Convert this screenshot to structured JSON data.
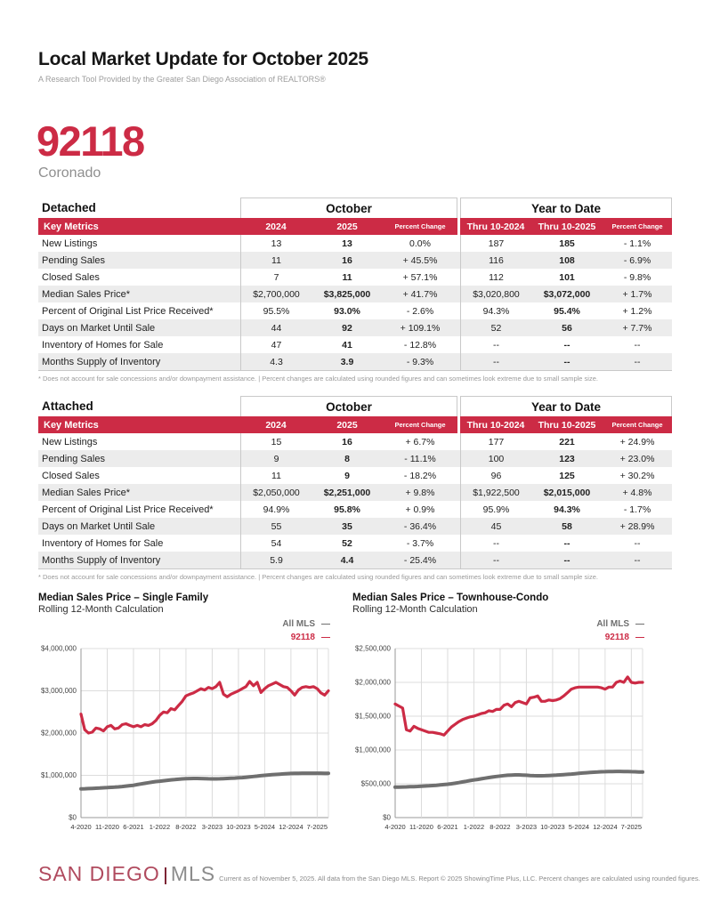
{
  "header": {
    "title": "Local Market Update for October 2025",
    "subtitle": "A Research Tool Provided by the Greater San Diego Association of REALTORS®"
  },
  "location": {
    "zip": "92118",
    "name": "Coronado"
  },
  "glyphs": {
    "legend_dash": "—"
  },
  "colors": {
    "accent_red": "#CC2B45",
    "chart_gray": "#6F6F6F",
    "logo_red": "#B04A5E",
    "logo_bar_red": "#7D2435",
    "logo_gray": "#8C8C8C"
  },
  "tables": [
    {
      "section": "Detached",
      "group_headers": {
        "october": "October",
        "ytd": "Year to Date"
      },
      "columns": [
        "Key Metrics",
        "2024",
        "2025",
        "Percent Change",
        "Thru 10-2024",
        "Thru 10-2025",
        "Percent Change"
      ],
      "rows": [
        [
          "New Listings",
          "13",
          "13",
          "0.0%",
          "187",
          "185",
          "- 1.1%"
        ],
        [
          "Pending Sales",
          "11",
          "16",
          "+ 45.5%",
          "116",
          "108",
          "- 6.9%"
        ],
        [
          "Closed Sales",
          "7",
          "11",
          "+ 57.1%",
          "112",
          "101",
          "- 9.8%"
        ],
        [
          "Median Sales Price*",
          "$2,700,000",
          "$3,825,000",
          "+ 41.7%",
          "$3,020,800",
          "$3,072,000",
          "+ 1.7%"
        ],
        [
          "Percent of Original List Price Received*",
          "95.5%",
          "93.0%",
          "- 2.6%",
          "94.3%",
          "95.4%",
          "+ 1.2%"
        ],
        [
          "Days on Market Until Sale",
          "44",
          "92",
          "+ 109.1%",
          "52",
          "56",
          "+ 7.7%"
        ],
        [
          "Inventory of Homes for Sale",
          "47",
          "41",
          "- 12.8%",
          "--",
          "--",
          "--"
        ],
        [
          "Months Supply of Inventory",
          "4.3",
          "3.9",
          "- 9.3%",
          "--",
          "--",
          "--"
        ]
      ],
      "footnote": "* Does not account for sale concessions and/or downpayment assistance.  |  Percent changes are calculated using rounded figures and can sometimes look extreme due to small sample size."
    },
    {
      "section": "Attached",
      "group_headers": {
        "october": "October",
        "ytd": "Year to Date"
      },
      "columns": [
        "Key Metrics",
        "2024",
        "2025",
        "Percent Change",
        "Thru 10-2024",
        "Thru 10-2025",
        "Percent Change"
      ],
      "rows": [
        [
          "New Listings",
          "15",
          "16",
          "+ 6.7%",
          "177",
          "221",
          "+ 24.9%"
        ],
        [
          "Pending Sales",
          "9",
          "8",
          "- 11.1%",
          "100",
          "123",
          "+ 23.0%"
        ],
        [
          "Closed Sales",
          "11",
          "9",
          "- 18.2%",
          "96",
          "125",
          "+ 30.2%"
        ],
        [
          "Median Sales Price*",
          "$2,050,000",
          "$2,251,000",
          "+ 9.8%",
          "$1,922,500",
          "$2,015,000",
          "+ 4.8%"
        ],
        [
          "Percent of Original List Price Received*",
          "94.9%",
          "95.8%",
          "+ 0.9%",
          "95.9%",
          "94.3%",
          "- 1.7%"
        ],
        [
          "Days on Market Until Sale",
          "55",
          "35",
          "- 36.4%",
          "45",
          "58",
          "+ 28.9%"
        ],
        [
          "Inventory of Homes for Sale",
          "54",
          "52",
          "- 3.7%",
          "--",
          "--",
          "--"
        ],
        [
          "Months Supply of Inventory",
          "5.9",
          "4.4",
          "- 25.4%",
          "--",
          "--",
          "--"
        ]
      ],
      "footnote": "* Does not account for sale concessions and/or downpayment assistance.  |  Percent changes are calculated using rounded figures and can sometimes look extreme due to small sample size."
    }
  ],
  "chart_data": [
    {
      "type": "line",
      "title": "Median Sales Price – Single Family",
      "subtitle": "Rolling 12-Month Calculation",
      "xlabel": "",
      "ylabel": "",
      "grid": true,
      "legend_position": "top-right",
      "ylim": [
        0,
        4000000
      ],
      "ytick_step": 1000000,
      "x_start": "4-2020",
      "x_end": "10-2025",
      "x_tick_labels": [
        "4-2020",
        "11-2020",
        "6-2021",
        "1-2022",
        "8-2022",
        "3-2023",
        "10-2023",
        "5-2024",
        "12-2024",
        "7-2025"
      ],
      "x_tick_interval_months": 7,
      "series": [
        {
          "name": "All MLS",
          "color": "#6F6F6F",
          "values": [
            680000,
            683000,
            686000,
            690000,
            695000,
            700000,
            705000,
            710000,
            715000,
            720000,
            727000,
            735000,
            745000,
            755000,
            765000,
            780000,
            795000,
            810000,
            825000,
            840000,
            852000,
            862000,
            872000,
            882000,
            892000,
            900000,
            908000,
            915000,
            920000,
            924000,
            926000,
            927000,
            925000,
            922000,
            918000,
            915000,
            916000,
            918000,
            922000,
            926000,
            930000,
            934000,
            940000,
            946000,
            954000,
            962000,
            972000,
            982000,
            992000,
            1000000,
            1008000,
            1015000,
            1022000,
            1028000,
            1034000,
            1040000,
            1044000,
            1046000,
            1048000,
            1050000,
            1050000,
            1050000,
            1050000,
            1050000,
            1050000,
            1048000,
            1048000
          ]
        },
        {
          "name": "92118",
          "color": "#CC2B45",
          "values": [
            2450000,
            2080000,
            2000000,
            2020000,
            2120000,
            2100000,
            2050000,
            2150000,
            2180000,
            2100000,
            2120000,
            2200000,
            2220000,
            2180000,
            2150000,
            2180000,
            2150000,
            2200000,
            2180000,
            2220000,
            2300000,
            2420000,
            2500000,
            2480000,
            2580000,
            2550000,
            2650000,
            2750000,
            2880000,
            2920000,
            2950000,
            3000000,
            3050000,
            3020000,
            3080000,
            3050000,
            3100000,
            3200000,
            2920000,
            2860000,
            2920000,
            2960000,
            3000000,
            3050000,
            3100000,
            3220000,
            3120000,
            3200000,
            2960000,
            3050000,
            3120000,
            3160000,
            3200000,
            3150000,
            3100000,
            3080000,
            3000000,
            2900000,
            3020000,
            3080000,
            3100000,
            3080000,
            3100000,
            3050000,
            2950000,
            2900000,
            3000000
          ]
        }
      ]
    },
    {
      "type": "line",
      "title": "Median Sales Price – Townhouse-Condo",
      "subtitle": "Rolling 12-Month Calculation",
      "xlabel": "",
      "ylabel": "",
      "grid": true,
      "legend_position": "top-right",
      "ylim": [
        0,
        2500000
      ],
      "ytick_step": 500000,
      "x_start": "4-2020",
      "x_end": "10-2025",
      "x_tick_labels": [
        "4-2020",
        "11-2020",
        "6-2021",
        "1-2022",
        "8-2022",
        "3-2023",
        "10-2023",
        "5-2024",
        "12-2024",
        "7-2025"
      ],
      "x_tick_interval_months": 7,
      "series": [
        {
          "name": "All MLS",
          "color": "#6F6F6F",
          "values": [
            450000,
            451000,
            452000,
            454000,
            456000,
            458000,
            461000,
            464000,
            467000,
            470000,
            474000,
            478000,
            483000,
            488000,
            494000,
            500000,
            508000,
            517000,
            527000,
            537000,
            547000,
            556000,
            565000,
            574000,
            583000,
            592000,
            600000,
            608000,
            615000,
            621000,
            626000,
            629000,
            631000,
            631000,
            629000,
            626000,
            623000,
            620000,
            618000,
            618000,
            620000,
            622000,
            625000,
            628000,
            631000,
            635000,
            639000,
            644000,
            649000,
            654000,
            659000,
            663000,
            667000,
            671000,
            674000,
            677000,
            679000,
            681000,
            682000,
            683000,
            683000,
            682000,
            681000,
            679000,
            677000,
            675000,
            674000
          ]
        },
        {
          "name": "92118",
          "color": "#CC2B45",
          "values": [
            1680000,
            1650000,
            1620000,
            1300000,
            1280000,
            1350000,
            1320000,
            1300000,
            1280000,
            1260000,
            1260000,
            1250000,
            1240000,
            1220000,
            1280000,
            1340000,
            1380000,
            1420000,
            1450000,
            1470000,
            1490000,
            1500000,
            1520000,
            1540000,
            1550000,
            1580000,
            1570000,
            1600000,
            1600000,
            1660000,
            1680000,
            1640000,
            1700000,
            1720000,
            1700000,
            1680000,
            1770000,
            1780000,
            1800000,
            1720000,
            1720000,
            1740000,
            1730000,
            1740000,
            1760000,
            1800000,
            1850000,
            1900000,
            1920000,
            1930000,
            1930000,
            1930000,
            1930000,
            1930000,
            1930000,
            1920000,
            1900000,
            1930000,
            1930000,
            2000000,
            2020000,
            2000000,
            2080000,
            2000000,
            1990000,
            2000000,
            2000000
          ]
        }
      ]
    }
  ],
  "footer": {
    "brand_primary": "SAN DIEGO",
    "brand_secondary": "MLS",
    "disclaimer": "Current as of November 5, 2025. All data from the San Diego MLS. Report © 2025 ShowingTime Plus, LLC. Percent changes are calculated using rounded figures."
  }
}
